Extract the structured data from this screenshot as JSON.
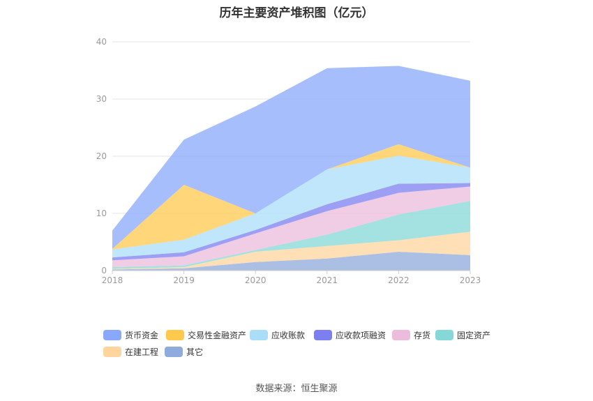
{
  "chart_data": {
    "type": "area",
    "stacked": true,
    "title": "历年主要资产堆积图（亿元）",
    "x": [
      "2018",
      "2019",
      "2020",
      "2021",
      "2022",
      "2023"
    ],
    "ylim": [
      0,
      40
    ],
    "yticks": [
      "0",
      "10",
      "20",
      "30",
      "40"
    ],
    "grid": true,
    "legend_position": "bottom",
    "series": [
      {
        "name": "其它",
        "color": "#8faadc",
        "values": [
          0.2,
          0.4,
          1.5,
          2.1,
          3.3,
          2.7
        ]
      },
      {
        "name": "在建工程",
        "color": "#ffd59e",
        "values": [
          0.1,
          0.2,
          1.8,
          2.2,
          2.0,
          4.1
        ]
      },
      {
        "name": "固定资产",
        "color": "#86d7d7",
        "values": [
          0.3,
          0.3,
          0.3,
          2.0,
          4.5,
          5.4
        ]
      },
      {
        "name": "存货",
        "color": "#ebbcdc",
        "values": [
          1.2,
          1.6,
          2.9,
          4.1,
          3.8,
          2.5
        ]
      },
      {
        "name": "应收款项融资",
        "color": "#7b7ff0",
        "values": [
          0.5,
          0.7,
          0.6,
          1.2,
          1.6,
          0.6
        ]
      },
      {
        "name": "应收账款",
        "color": "#a9ddf8",
        "values": [
          1.4,
          2.2,
          2.9,
          6.1,
          4.9,
          2.7
        ]
      },
      {
        "name": "交易性金融资产",
        "color": "#ffc94d",
        "values": [
          0.1,
          9.6,
          0.0,
          0.0,
          2.0,
          0.0
        ]
      },
      {
        "name": "货币资金",
        "color": "#8aa8fb",
        "values": [
          3.2,
          7.9,
          18.7,
          17.7,
          13.7,
          15.2
        ]
      }
    ],
    "legend_order": [
      "货币资金",
      "交易性金融资产",
      "应收账款",
      "应收款项融资",
      "存货",
      "固定资产",
      "在建工程",
      "其它"
    ]
  },
  "source": "数据来源：恒生聚源"
}
